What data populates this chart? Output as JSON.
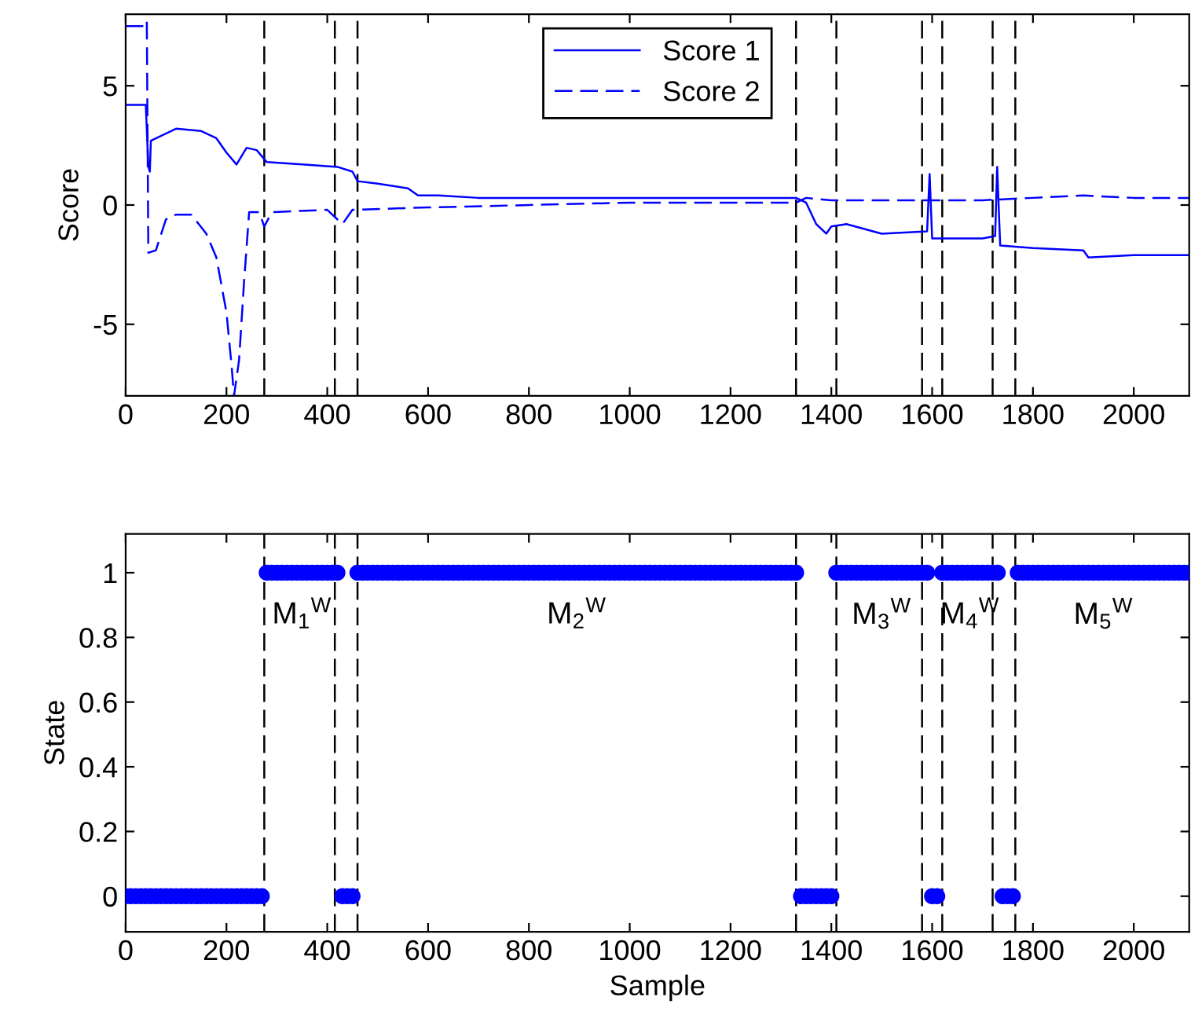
{
  "chart_data": [
    {
      "type": "line",
      "ylabel": "Score",
      "xlim": [
        0,
        2110
      ],
      "ylim": [
        -8,
        8
      ],
      "xticks": [
        0,
        200,
        400,
        600,
        800,
        1000,
        1200,
        1400,
        1600,
        1800,
        2000
      ],
      "yticks": [
        -5,
        0,
        5
      ],
      "legend": "top",
      "grid": false,
      "series": [
        {
          "name": "Score 1",
          "color": "#0000ff",
          "line_style": "solid",
          "x": [
            0,
            40,
            45,
            48,
            50,
            100,
            150,
            180,
            200,
            220,
            240,
            260,
            280,
            350,
            420,
            450,
            460,
            500,
            560,
            580,
            620,
            700,
            800,
            1000,
            1200,
            1330,
            1350,
            1370,
            1390,
            1400,
            1430,
            1500,
            1590,
            1595,
            1600,
            1700,
            1725,
            1729,
            1735,
            1800,
            1900,
            1910,
            2000,
            2110
          ],
          "values": [
            4.2,
            4.2,
            1.6,
            1.4,
            2.7,
            3.2,
            3.1,
            2.8,
            2.2,
            1.7,
            2.4,
            2.3,
            1.8,
            1.7,
            1.6,
            1.4,
            1.0,
            0.9,
            0.7,
            0.4,
            0.4,
            0.3,
            0.3,
            0.3,
            0.3,
            0.3,
            0.1,
            -0.8,
            -1.2,
            -0.9,
            -0.8,
            -1.2,
            -1.1,
            1.3,
            -1.4,
            -1.4,
            -1.3,
            1.6,
            -1.7,
            -1.8,
            -1.9,
            -2.2,
            -2.1,
            -2.1
          ]
        },
        {
          "name": "Score 2",
          "color": "#0000ff",
          "line_style": "dashed",
          "x": [
            0,
            40,
            42,
            45,
            60,
            80,
            100,
            130,
            160,
            180,
            200,
            210,
            215,
            225,
            235,
            245,
            265,
            275,
            290,
            400,
            430,
            450,
            600,
            800,
            1000,
            1200,
            1330,
            1350,
            1400,
            1500,
            1600,
            1700,
            1800,
            1900,
            2000,
            2110
          ],
          "values": [
            7.5,
            7.5,
            7.7,
            -2.0,
            -1.9,
            -0.6,
            -0.4,
            -0.4,
            -1.2,
            -2.2,
            -4.5,
            -6.7,
            -8,
            -6.5,
            -3.2,
            -0.3,
            -0.3,
            -0.9,
            -0.3,
            -0.2,
            -0.8,
            -0.2,
            -0.1,
            0,
            0.1,
            0.1,
            0.1,
            0.3,
            0.2,
            0.2,
            0.2,
            0.2,
            0.3,
            0.4,
            0.3,
            0.3
          ]
        }
      ],
      "ref_lines": [
        {
          "axis": "x",
          "value": 275,
          "color": "#000000",
          "line_style": "dashed"
        },
        {
          "axis": "x",
          "value": 415,
          "color": "#000000",
          "line_style": "dashed"
        },
        {
          "axis": "x",
          "value": 460,
          "color": "#000000",
          "line_style": "dashed"
        },
        {
          "axis": "x",
          "value": 1330,
          "color": "#000000",
          "line_style": "dashed"
        },
        {
          "axis": "x",
          "value": 1410,
          "color": "#000000",
          "line_style": "dashed"
        },
        {
          "axis": "x",
          "value": 1580,
          "color": "#000000",
          "line_style": "dashed"
        },
        {
          "axis": "x",
          "value": 1620,
          "color": "#000000",
          "line_style": "dashed"
        },
        {
          "axis": "x",
          "value": 1720,
          "color": "#000000",
          "line_style": "dashed"
        },
        {
          "axis": "x",
          "value": 1765,
          "color": "#000000",
          "line_style": "dashed"
        }
      ]
    },
    {
      "type": "scatter",
      "xlabel": "Sample",
      "ylabel": "State",
      "xlim": [
        0,
        2110
      ],
      "ylim": [
        -0.11,
        1.12
      ],
      "xticks": [
        0,
        200,
        400,
        600,
        800,
        1000,
        1200,
        1400,
        1600,
        1800,
        2000
      ],
      "yticks": [
        0,
        0.2,
        0.4,
        0.6,
        0.8,
        1
      ],
      "marker": "circle",
      "grid": false,
      "series": [
        {
          "color": "#0000ff",
          "x": [
            0,
            10,
            20,
            30,
            40,
            50,
            60,
            70,
            80,
            90,
            100,
            110,
            120,
            130,
            140,
            150,
            160,
            170,
            180,
            190,
            200,
            210,
            220,
            230,
            240,
            250,
            260,
            270,
            280,
            290,
            300,
            310,
            320,
            330,
            340,
            350,
            360,
            370,
            380,
            390,
            400,
            410,
            420,
            430,
            440,
            450,
            460,
            470,
            480,
            490,
            500,
            510,
            520,
            530,
            540,
            550,
            560,
            570,
            580,
            590,
            600,
            610,
            620,
            630,
            640,
            650,
            660,
            670,
            680,
            690,
            700,
            710,
            720,
            730,
            740,
            750,
            760,
            770,
            780,
            790,
            800,
            810,
            820,
            830,
            840,
            850,
            860,
            870,
            880,
            890,
            900,
            910,
            920,
            930,
            940,
            950,
            960,
            970,
            980,
            990,
            1000,
            1010,
            1020,
            1030,
            1040,
            1050,
            1060,
            1070,
            1080,
            1090,
            1100,
            1110,
            1120,
            1130,
            1140,
            1150,
            1160,
            1170,
            1180,
            1190,
            1200,
            1210,
            1220,
            1230,
            1240,
            1250,
            1260,
            1270,
            1280,
            1290,
            1300,
            1310,
            1320,
            1330,
            1340,
            1350,
            1360,
            1370,
            1380,
            1390,
            1400,
            1410,
            1420,
            1430,
            1440,
            1450,
            1460,
            1470,
            1480,
            1490,
            1500,
            1510,
            1520,
            1530,
            1540,
            1550,
            1560,
            1570,
            1580,
            1590,
            1600,
            1610,
            1620,
            1630,
            1640,
            1650,
            1660,
            1670,
            1680,
            1690,
            1700,
            1710,
            1720,
            1730,
            1740,
            1750,
            1760,
            1770,
            1780,
            1790,
            1800,
            1810,
            1820,
            1830,
            1840,
            1850,
            1860,
            1870,
            1880,
            1890,
            1900,
            1910,
            1920,
            1930,
            1940,
            1950,
            1960,
            1970,
            1980,
            1990,
            2000,
            2010,
            2020,
            2030,
            2040,
            2050,
            2060,
            2070,
            2080,
            2090,
            2100,
            2110
          ],
          "values": [
            0,
            0,
            0,
            0,
            0,
            0,
            0,
            0,
            0,
            0,
            0,
            0,
            0,
            0,
            0,
            0,
            0,
            0,
            0,
            0,
            0,
            0,
            0,
            0,
            0,
            0,
            0,
            0,
            1,
            1,
            1,
            1,
            1,
            1,
            1,
            1,
            1,
            1,
            1,
            1,
            1,
            1,
            1,
            0,
            0,
            0,
            1,
            1,
            1,
            1,
            1,
            1,
            1,
            1,
            1,
            1,
            1,
            1,
            1,
            1,
            1,
            1,
            1,
            1,
            1,
            1,
            1,
            1,
            1,
            1,
            1,
            1,
            1,
            1,
            1,
            1,
            1,
            1,
            1,
            1,
            1,
            1,
            1,
            1,
            1,
            1,
            1,
            1,
            1,
            1,
            1,
            1,
            1,
            1,
            1,
            1,
            1,
            1,
            1,
            1,
            1,
            1,
            1,
            1,
            1,
            1,
            1,
            1,
            1,
            1,
            1,
            1,
            1,
            1,
            1,
            1,
            1,
            1,
            1,
            1,
            1,
            1,
            1,
            1,
            1,
            1,
            1,
            1,
            1,
            1,
            1,
            1,
            1,
            1,
            0,
            0,
            0,
            0,
            0,
            0,
            0,
            1,
            1,
            1,
            1,
            1,
            1,
            1,
            1,
            1,
            1,
            1,
            1,
            1,
            1,
            1,
            1,
            1,
            1,
            1,
            0,
            0,
            1,
            1,
            1,
            1,
            1,
            1,
            1,
            1,
            1,
            1,
            1,
            1,
            0,
            0,
            0,
            1,
            1,
            1,
            1,
            1,
            1,
            1,
            1,
            1,
            1,
            1,
            1,
            1,
            1,
            1,
            1,
            1,
            1,
            1,
            1,
            1,
            1,
            1,
            1,
            1,
            1,
            1,
            1,
            1,
            1,
            1,
            1,
            1,
            1,
            1
          ]
        }
      ],
      "ref_lines": [
        {
          "axis": "x",
          "value": 275,
          "color": "#000000",
          "line_style": "dashed"
        },
        {
          "axis": "x",
          "value": 415,
          "color": "#000000",
          "line_style": "dashed"
        },
        {
          "axis": "x",
          "value": 460,
          "color": "#000000",
          "line_style": "dashed"
        },
        {
          "axis": "x",
          "value": 1330,
          "color": "#000000",
          "line_style": "dashed"
        },
        {
          "axis": "x",
          "value": 1410,
          "color": "#000000",
          "line_style": "dashed"
        },
        {
          "axis": "x",
          "value": 1580,
          "color": "#000000",
          "line_style": "dashed"
        },
        {
          "axis": "x",
          "value": 1620,
          "color": "#000000",
          "line_style": "dashed"
        },
        {
          "axis": "x",
          "value": 1720,
          "color": "#000000",
          "line_style": "dashed"
        },
        {
          "axis": "x",
          "value": 1765,
          "color": "#000000",
          "line_style": "dashed"
        }
      ],
      "annotations": [
        "M$_{1}$$^{W}$",
        "M$_{2}$$^{W}$",
        "M$_{3}$$^{W}$",
        "M$_{4}$$^{W}$",
        "M$_{5}$$^{W}$"
      ]
    }
  ]
}
